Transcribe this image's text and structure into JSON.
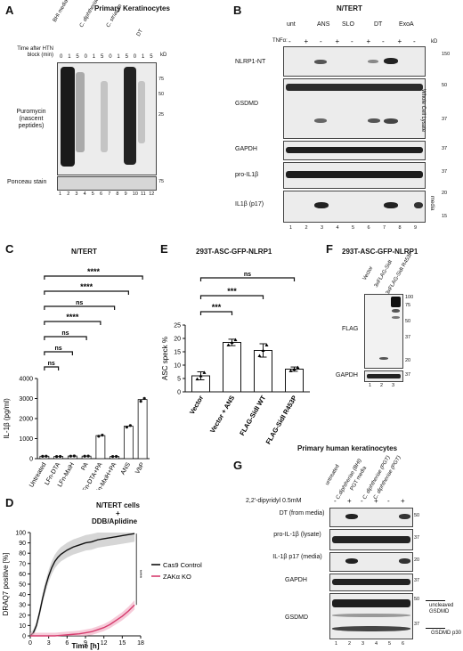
{
  "panelA": {
    "letter": "A",
    "title": "Primary Keratinocytes",
    "groups": [
      "BHI media",
      "C. diphtheriae",
      "C. striatum",
      "DT"
    ],
    "time_label": "Time after HTN block (min)",
    "times": [
      "0",
      "1",
      "5",
      "0",
      "1",
      "5",
      "0",
      "1",
      "5",
      "0",
      "1",
      "5"
    ],
    "kd_label": "kD",
    "row_puromycin": "Puromycin (nascent peptides)",
    "row_ponceau": "Ponceau stain",
    "mw_markers": [
      "75",
      "50",
      "25"
    ],
    "ponceau_marker": "75",
    "lanes": [
      "1",
      "2",
      "3",
      "4",
      "5",
      "6",
      "7",
      "8",
      "9",
      "10",
      "11",
      "12"
    ]
  },
  "panelB": {
    "letter": "B",
    "title": "N/TERT",
    "groups": [
      "unt",
      "ANS",
      "SLO",
      "DT",
      "ExoA"
    ],
    "tnf_label": "TNFα:",
    "tnf": [
      "-",
      "+",
      "-",
      "+",
      "-",
      "+",
      "-",
      "+",
      "-"
    ],
    "kd_label": "kD",
    "rows": [
      "NLRP1-NT",
      "GSDMD",
      "GAPDH",
      "pro-IL1β",
      "IL1β (p17)"
    ],
    "side_wcl": "Whole Cell Lysate",
    "side_media": "media",
    "mw": [
      "150",
      "50",
      "37",
      "37",
      "37",
      "20",
      "15"
    ],
    "lanes": [
      "1",
      "2",
      "3",
      "4",
      "5",
      "6",
      "7",
      "8",
      "9"
    ]
  },
  "panelC": {
    "letter": "C",
    "title": "N/TERT",
    "ylabel": "IL-1β (pg/ml)",
    "sig": [
      "ns",
      "ns",
      "ns",
      "****",
      "ns",
      "****",
      "****"
    ]
  },
  "panelD": {
    "letter": "D",
    "title1": "N/TERT cells",
    "title2": "+",
    "title3": "DDB/Aplidine",
    "ylabel": "DRAQ7 positive [%]",
    "xlabel": "Time [h]",
    "sig": "****"
  },
  "panelE": {
    "letter": "E",
    "title": "293T-ASC-GFP-NLRP1",
    "ylabel": "ASC speck %",
    "sig": [
      "ns",
      "***",
      "***"
    ]
  },
  "panelF": {
    "letter": "F",
    "title": "293T-ASC-GFP-NLRP1",
    "lane_labels": [
      "Vector",
      "3xFLAG-SidI",
      "3xFLAG-SidI R453P"
    ],
    "rows": [
      "FLAG",
      "GAPDH"
    ],
    "mw": [
      "100",
      "75",
      "50",
      "37",
      "20",
      "37"
    ],
    "lanes": [
      "1",
      "2",
      "3"
    ]
  },
  "panelG": {
    "letter": "G",
    "title": "Primary human keratinocytes",
    "lane_labels": [
      "untreated",
      "C.diphtheriae (BHI)",
      "PGT media",
      "C. diphtheriae (PGT)",
      "C. diphtheriae (PGT)"
    ],
    "treat_label": "2,2'-dipyridyl 0.5mM",
    "treat": [
      "-",
      "+",
      "-",
      "+",
      "-",
      "+"
    ],
    "rows": [
      "DT (from media)",
      "pro-IL-1β (lysate)",
      "IL-1β p17 (media)",
      "GAPDH",
      "GSDMD"
    ],
    "mw": [
      "50",
      "37",
      "20",
      "37",
      "50",
      "37"
    ],
    "arrow_uncleaved": "uncleaved GSDMD",
    "arrow_p30": "GSDMD p30",
    "lanes": [
      "1",
      "2",
      "3",
      "4",
      "5",
      "6"
    ]
  },
  "chart_data": [
    {
      "id": "C",
      "type": "bar",
      "title": "N/TERT",
      "ylabel": "IL-1β (pg/ml)",
      "categories": [
        "Untreated",
        "LFn-DTA",
        "LFn-MxiH",
        "PA",
        "LFn-DTA+PA",
        "LFn-MxiH+PA",
        "ANS",
        "VbP"
      ],
      "values": [
        120,
        110,
        130,
        125,
        1150,
        110,
        1620,
        2950
      ],
      "ylim": [
        0,
        4000
      ],
      "yticks": [
        0,
        1000,
        2000,
        3000,
        4000
      ],
      "comparisons": [
        {
          "from": "Untreated",
          "to": "LFn-DTA",
          "label": "ns"
        },
        {
          "from": "Untreated",
          "to": "LFn-MxiH",
          "label": "ns"
        },
        {
          "from": "Untreated",
          "to": "PA",
          "label": "ns"
        },
        {
          "from": "Untreated",
          "to": "LFn-DTA+PA",
          "label": "****"
        },
        {
          "from": "Untreated",
          "to": "LFn-MxiH+PA",
          "label": "ns"
        },
        {
          "from": "Untreated",
          "to": "ANS",
          "label": "****"
        },
        {
          "from": "Untreated",
          "to": "VbP",
          "label": "****"
        }
      ]
    },
    {
      "id": "D",
      "type": "line",
      "ylabel": "DRAQ7 positive [%]",
      "xlabel": "Time [h]",
      "xlim": [
        0,
        18
      ],
      "ylim": [
        0,
        100
      ],
      "xticks": [
        0,
        3,
        6,
        9,
        12,
        15,
        18
      ],
      "yticks": [
        0,
        10,
        20,
        30,
        40,
        50,
        60,
        70,
        80,
        90,
        100
      ],
      "series": [
        {
          "name": "Cas9 Control",
          "color": "#111111",
          "x": [
            0,
            0.5,
            1,
            1.5,
            2,
            2.5,
            3,
            3.5,
            4,
            4.5,
            5,
            5.5,
            6,
            7,
            8,
            9,
            10,
            11,
            12,
            13,
            14,
            15,
            16,
            17
          ],
          "y": [
            0,
            3,
            10,
            22,
            36,
            48,
            58,
            66,
            72,
            76,
            79,
            81,
            83,
            86,
            88,
            90,
            91,
            93,
            94,
            95,
            96,
            97,
            98,
            99
          ]
        },
        {
          "name": "ZAKα KO",
          "color": "#d63c6e",
          "x": [
            0,
            1,
            2,
            3,
            4,
            5,
            6,
            7,
            8,
            9,
            10,
            11,
            12,
            13,
            14,
            15,
            16,
            17
          ],
          "y": [
            0,
            0,
            0,
            0,
            0,
            0.5,
            1,
            1.5,
            2,
            3,
            4,
            6,
            8,
            11,
            15,
            19,
            24,
            30
          ]
        }
      ],
      "legend": "right"
    },
    {
      "id": "E",
      "type": "bar",
      "title": "293T-ASC-GFP-NLRP1",
      "ylabel": "ASC speck %",
      "categories": [
        "Vector",
        "Vector + ANS",
        "FLAG-SidI WT",
        "FLAG-SidI R453P"
      ],
      "values": [
        6,
        18.5,
        15.5,
        8.5
      ],
      "errors": [
        1.5,
        1.2,
        2.5,
        0.8
      ],
      "ylim": [
        0,
        25
      ],
      "yticks": [
        0,
        5,
        10,
        15,
        20,
        25
      ],
      "comparisons": [
        {
          "from": "Vector",
          "to": "FLAG-SidI R453P",
          "label": "ns"
        },
        {
          "from": "Vector",
          "to": "FLAG-SidI WT",
          "label": "***"
        },
        {
          "from": "Vector",
          "to": "Vector + ANS",
          "label": "***"
        }
      ]
    }
  ]
}
